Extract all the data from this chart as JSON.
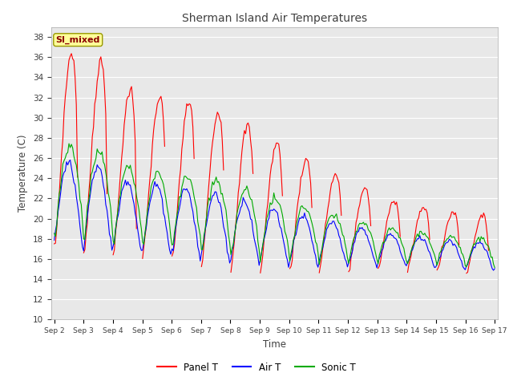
{
  "title": "Sherman Island Air Temperatures",
  "xlabel": "Time",
  "ylabel": "Temperature (C)",
  "ylim": [
    10,
    39
  ],
  "yticks": [
    10,
    12,
    14,
    16,
    18,
    20,
    22,
    24,
    26,
    28,
    30,
    32,
    34,
    36,
    38
  ],
  "x_tick_labels": [
    "Sep 2",
    "Sep 3",
    "Sep 4",
    "Sep 5",
    "Sep 6",
    "Sep 7",
    "Sep 8",
    "Sep 9",
    "Sep 10",
    "Sep 11",
    "Sep 12",
    "Sep 13",
    "Sep 14",
    "Sep 15",
    "Sep 16",
    "Sep 17"
  ],
  "annotation_text": "SI_mixed",
  "annotation_color": "#8B0000",
  "annotation_bg": "#FFFF99",
  "annotation_edge": "#999900",
  "line_colors": [
    "#FF0000",
    "#0000FF",
    "#00AA00"
  ],
  "line_labels": [
    "Panel T",
    "Air T",
    "Sonic T"
  ],
  "fig_bg": "#FFFFFF",
  "plot_bg": "#E8E8E8",
  "grid_color": "#FFFFFF",
  "title_color": "#404040",
  "label_color": "#404040",
  "tick_color": "#404040"
}
